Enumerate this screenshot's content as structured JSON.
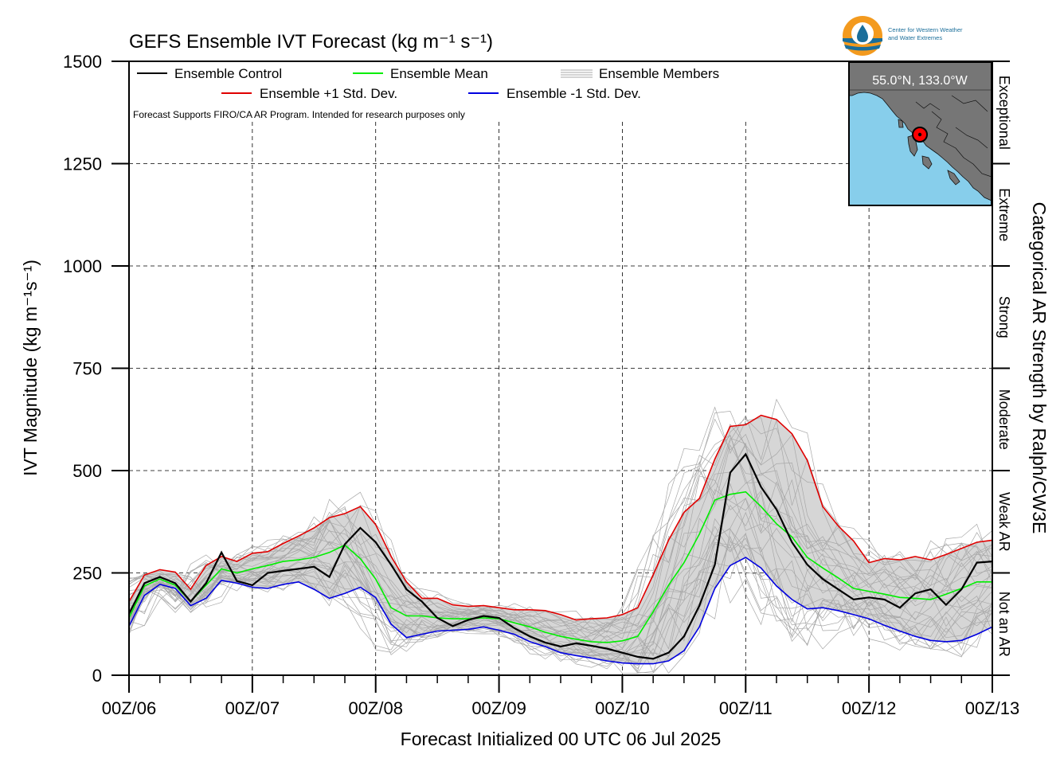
{
  "chart_data": {
    "type": "line",
    "title": "GEFS Ensemble IVT Forecast (kg m⁻¹ s⁻¹)",
    "xlabel": "Forecast Initialized 00 UTC 06 Jul 2025",
    "ylabel": "IVT Magnitude (kg m⁻¹s⁻¹)",
    "right_label": "Categorical AR Strength by Ralph/CW3E",
    "x_hours_range": [
      0,
      168
    ],
    "ylim": [
      0,
      1500
    ],
    "yticks": [
      0,
      250,
      500,
      750,
      1000,
      1250,
      1500
    ],
    "xtick_labels": [
      "00Z/06",
      "00Z/07",
      "00Z/08",
      "00Z/09",
      "00Z/10",
      "00Z/11",
      "00Z/12",
      "00Z/13"
    ],
    "grid": true,
    "categories": [
      {
        "name": "Not an AR",
        "from": 0,
        "to": 250
      },
      {
        "name": "Weak AR",
        "from": 250,
        "to": 500
      },
      {
        "name": "Moderate",
        "from": 500,
        "to": 750
      },
      {
        "name": "Strong",
        "from": 750,
        "to": 1000
      },
      {
        "name": "Extreme",
        "from": 1000,
        "to": 1250
      },
      {
        "name": "Exceptional",
        "from": 1250,
        "to": 1500
      }
    ],
    "legend": {
      "placement": "top-left",
      "control": "Ensemble Control",
      "mean": "Ensemble Mean",
      "members": "Ensemble Members",
      "plus": "Ensemble +1 Std. Dev.",
      "minus": "Ensemble -1 Std. Dev."
    },
    "note": "Forecast Supports FIRO/CA AR Program. Intended for research purposes only",
    "colors": {
      "control": "#000000",
      "mean": "#00ee00",
      "plus": "#e00000",
      "minus": "#0000e0",
      "members": "#a8a8a8",
      "band": "#d6d6d6",
      "map_land": "#767676",
      "map_ocean": "#87ceeb",
      "marker": "#ff0000",
      "logo_orange": "#f39a1e",
      "logo_blue": "#1a6e9a"
    },
    "series": [
      {
        "name": "Ensemble Control",
        "role": "control",
        "x": [
          0,
          3,
          6,
          9,
          12,
          15,
          18,
          21,
          24,
          27,
          30,
          33,
          36,
          39,
          42,
          45,
          48,
          51,
          54,
          57,
          60,
          63,
          66,
          69,
          72,
          75,
          78,
          81,
          84,
          87,
          90,
          93,
          96,
          99,
          102,
          105,
          108,
          111,
          114,
          117,
          120,
          123,
          126,
          129,
          132,
          135,
          138,
          141,
          144,
          147,
          150,
          153,
          156,
          159,
          162,
          165,
          168
        ],
        "y": [
          150,
          225,
          240,
          225,
          180,
          225,
          300,
          230,
          220,
          250,
          255,
          260,
          265,
          240,
          320,
          360,
          325,
          270,
          210,
          180,
          140,
          120,
          135,
          145,
          140,
          115,
          95,
          80,
          70,
          78,
          72,
          65,
          55,
          45,
          40,
          55,
          95,
          170,
          270,
          495,
          540,
          460,
          405,
          325,
          270,
          235,
          210,
          185,
          190,
          185,
          165,
          200,
          210,
          172,
          210,
          275,
          278
        ]
      },
      {
        "name": "Ensemble Mean",
        "role": "mean",
        "x": [
          0,
          3,
          6,
          9,
          12,
          15,
          18,
          21,
          24,
          27,
          30,
          33,
          36,
          39,
          42,
          45,
          48,
          51,
          54,
          57,
          60,
          63,
          66,
          69,
          72,
          75,
          78,
          81,
          84,
          87,
          90,
          93,
          96,
          99,
          102,
          105,
          108,
          111,
          114,
          117,
          120,
          123,
          126,
          129,
          132,
          135,
          138,
          141,
          144,
          147,
          150,
          153,
          156,
          159,
          162,
          165,
          168
        ],
        "y": [
          140,
          218,
          235,
          220,
          180,
          220,
          260,
          250,
          260,
          268,
          278,
          282,
          288,
          300,
          318,
          285,
          235,
          165,
          145,
          145,
          140,
          138,
          138,
          140,
          138,
          128,
          118,
          105,
          95,
          88,
          82,
          80,
          84,
          95,
          155,
          220,
          275,
          345,
          428,
          442,
          448,
          412,
          370,
          338,
          288,
          262,
          238,
          212,
          205,
          198,
          190,
          188,
          185,
          198,
          212,
          228,
          228
        ]
      },
      {
        "name": "Ensemble +1 Std. Dev.",
        "role": "plus",
        "x": [
          0,
          3,
          6,
          9,
          12,
          15,
          18,
          21,
          24,
          27,
          30,
          33,
          36,
          39,
          42,
          45,
          48,
          51,
          54,
          57,
          60,
          63,
          66,
          69,
          72,
          75,
          78,
          81,
          84,
          87,
          90,
          93,
          96,
          99,
          102,
          105,
          108,
          111,
          114,
          117,
          120,
          123,
          126,
          129,
          132,
          135,
          138,
          141,
          144,
          147,
          150,
          153,
          156,
          159,
          162,
          165,
          168
        ],
        "y": [
          180,
          245,
          258,
          252,
          210,
          268,
          290,
          278,
          298,
          302,
          322,
          340,
          360,
          385,
          395,
          412,
          368,
          290,
          228,
          188,
          188,
          172,
          168,
          170,
          165,
          160,
          160,
          158,
          148,
          135,
          138,
          140,
          148,
          165,
          245,
          330,
          398,
          432,
          528,
          608,
          612,
          635,
          625,
          590,
          525,
          412,
          365,
          328,
          275,
          285,
          282,
          290,
          282,
          295,
          310,
          325,
          330
        ]
      },
      {
        "name": "Ensemble -1 Std. Dev.",
        "role": "minus",
        "x": [
          0,
          3,
          6,
          9,
          12,
          15,
          18,
          21,
          24,
          27,
          30,
          33,
          36,
          39,
          42,
          45,
          48,
          51,
          54,
          57,
          60,
          63,
          66,
          69,
          72,
          75,
          78,
          81,
          84,
          87,
          90,
          93,
          96,
          99,
          102,
          105,
          108,
          111,
          114,
          117,
          120,
          123,
          126,
          129,
          132,
          135,
          138,
          141,
          144,
          147,
          150,
          153,
          156,
          159,
          162,
          165,
          168
        ],
        "y": [
          120,
          195,
          222,
          212,
          170,
          188,
          232,
          225,
          215,
          212,
          222,
          228,
          210,
          188,
          200,
          215,
          190,
          125,
          92,
          100,
          108,
          110,
          112,
          118,
          110,
          100,
          82,
          70,
          55,
          48,
          42,
          35,
          30,
          28,
          28,
          35,
          60,
          118,
          212,
          268,
          288,
          262,
          218,
          185,
          162,
          165,
          158,
          148,
          138,
          122,
          108,
          95,
          85,
          82,
          85,
          100,
          118
        ]
      }
    ]
  },
  "map": {
    "label": "55.0°N, 133.0°W",
    "site_lat": 55.0,
    "site_lon": -133.0
  },
  "logo": {
    "line1": "Center for Western Weather",
    "line2": "and Water Extremes"
  }
}
